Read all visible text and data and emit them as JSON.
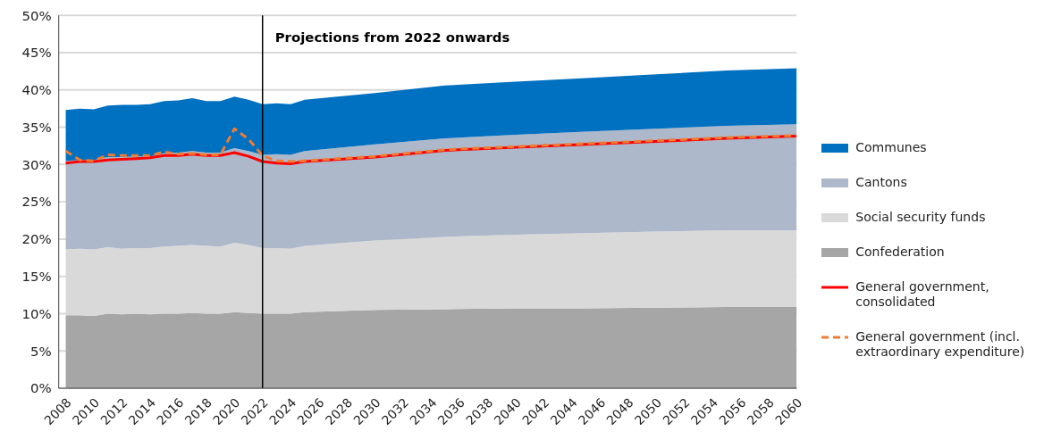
{
  "chart_data": {
    "type": "area",
    "stacked": true,
    "x": [
      2008,
      2009,
      2010,
      2011,
      2012,
      2013,
      2014,
      2015,
      2016,
      2017,
      2018,
      2019,
      2020,
      2021,
      2022,
      2023,
      2024,
      2025,
      2030,
      2035,
      2040,
      2045,
      2050,
      2055,
      2060
    ],
    "series": [
      {
        "name": "Confederation",
        "color": "#a6a6a6",
        "values": [
          9.8,
          9.8,
          9.7,
          10.0,
          9.9,
          10.0,
          9.9,
          10.0,
          10.0,
          10.1,
          10.0,
          10.0,
          10.2,
          10.1,
          10.0,
          10.0,
          10.0,
          10.2,
          10.5,
          10.6,
          10.7,
          10.7,
          10.8,
          10.9,
          10.9
        ]
      },
      {
        "name": "Social security funds",
        "color": "#d9d9d9",
        "values": [
          8.8,
          8.9,
          8.9,
          8.9,
          8.8,
          8.8,
          8.9,
          9.0,
          9.1,
          9.1,
          9.1,
          9.0,
          9.3,
          9.1,
          8.8,
          8.8,
          8.7,
          8.9,
          9.3,
          9.7,
          9.9,
          10.1,
          10.2,
          10.3,
          10.3
        ]
      },
      {
        "name": "Cantons",
        "color": "#adb8ca",
        "values": [
          11.9,
          11.9,
          12.0,
          12.1,
          12.3,
          12.3,
          12.3,
          12.5,
          12.5,
          12.6,
          12.5,
          12.6,
          12.7,
          12.6,
          12.5,
          12.6,
          12.6,
          12.7,
          12.9,
          13.2,
          13.4,
          13.6,
          13.8,
          14.0,
          14.2
        ]
      },
      {
        "name": "Communes",
        "color": "#0070c0",
        "values": [
          6.8,
          6.9,
          6.8,
          6.9,
          7.0,
          6.9,
          7.0,
          7.0,
          7.0,
          7.1,
          6.9,
          6.9,
          6.9,
          6.9,
          6.8,
          6.8,
          6.8,
          6.9,
          6.9,
          7.1,
          7.1,
          7.2,
          7.3,
          7.4,
          7.5
        ]
      },
      {
        "name": "General government, consolidated",
        "type": "line",
        "color": "#ff0000",
        "line_style": "solid",
        "values": [
          30.2,
          30.4,
          30.4,
          30.6,
          30.7,
          30.8,
          30.9,
          31.2,
          31.2,
          31.4,
          31.2,
          31.2,
          31.6,
          31.1,
          30.4,
          30.2,
          30.1,
          30.4,
          31.0,
          31.9,
          32.3,
          32.7,
          33.1,
          33.5,
          33.8
        ]
      },
      {
        "name": "General government (incl. extraordinary expenditure)",
        "type": "line",
        "color": "#ed7d31",
        "line_style": "dashed",
        "values": [
          31.8,
          30.6,
          30.5,
          31.3,
          31.2,
          31.2,
          31.2,
          31.7,
          31.4,
          31.5,
          31.3,
          31.3,
          34.8,
          33.4,
          31.2,
          30.5,
          30.4,
          30.5,
          31.1,
          32.0,
          32.4,
          32.8,
          33.2,
          33.6,
          33.9
        ]
      }
    ],
    "xlim": [
      2007.5,
      2060
    ],
    "xticks": [
      2008,
      2010,
      2012,
      2014,
      2016,
      2018,
      2020,
      2022,
      2024,
      2026,
      2028,
      2030,
      2032,
      2034,
      2036,
      2038,
      2040,
      2042,
      2044,
      2046,
      2048,
      2050,
      2052,
      2054,
      2056,
      2058,
      2060
    ],
    "ylim": [
      0,
      50
    ],
    "yticks": [
      {
        "value": 0,
        "label": "0%"
      },
      {
        "value": 5,
        "label": "5%"
      },
      {
        "value": 10,
        "label": "10%"
      },
      {
        "value": 15,
        "label": "15%"
      },
      {
        "value": 20,
        "label": "20%"
      },
      {
        "value": 25,
        "label": "25%"
      },
      {
        "value": 30,
        "label": "30%"
      },
      {
        "value": 35,
        "label": "35%"
      },
      {
        "value": 40,
        "label": "40%"
      },
      {
        "value": 45,
        "label": "45%"
      },
      {
        "value": 50,
        "label": "50%"
      }
    ],
    "ref_lines": [
      {
        "axis": "x",
        "value": 2022,
        "label": "Projections from 2022 onwards",
        "color": "#000000"
      }
    ],
    "grid": "y",
    "legend": "right"
  }
}
